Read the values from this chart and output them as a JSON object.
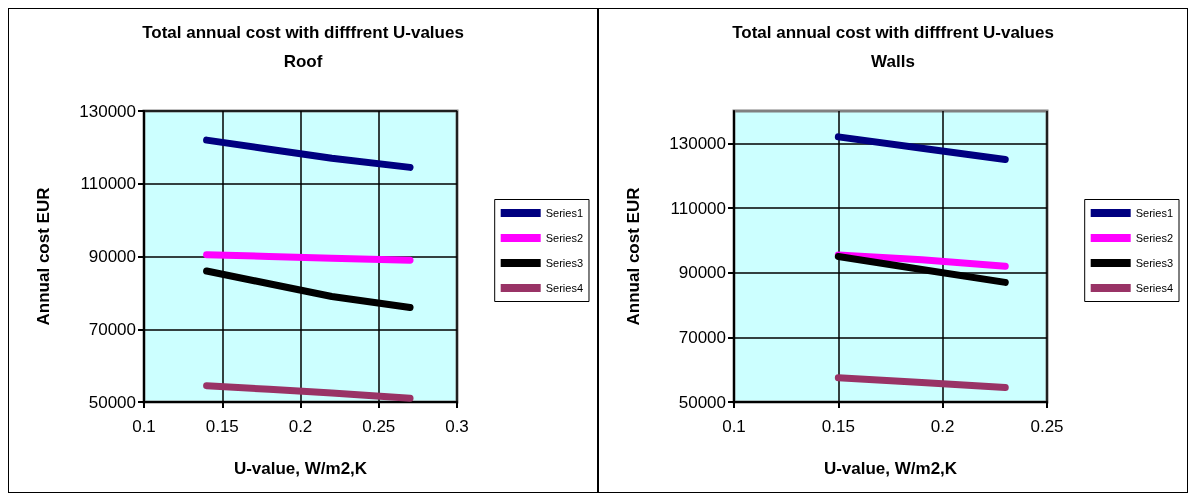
{
  "chart_data": [
    {
      "type": "line",
      "title": "Total annual cost with difffrent U-values",
      "subtitle": "Roof",
      "xlabel": "U-value, W/m2,K",
      "ylabel": "Annual cost EUR",
      "xlim": [
        0.1,
        0.3
      ],
      "xticks": [
        0.1,
        0.15,
        0.2,
        0.25,
        0.3
      ],
      "ylim": [
        50000,
        130000
      ],
      "yticks": [
        50000,
        70000,
        90000,
        110000,
        130000
      ],
      "grid": true,
      "legend": "right",
      "marker": "none",
      "line_style": "solid",
      "series": [
        {
          "name": "Series1",
          "color": "#000080",
          "x": [
            0.14,
            0.18,
            0.22,
            0.27
          ],
          "values": [
            122000,
            119500,
            117000,
            114500
          ]
        },
        {
          "name": "Series2",
          "color": "#ff00ff",
          "x": [
            0.14,
            0.18,
            0.22,
            0.27
          ],
          "values": [
            90500,
            90000,
            89500,
            89000
          ]
        },
        {
          "name": "Series3",
          "color": "#000000",
          "x": [
            0.14,
            0.18,
            0.22,
            0.27
          ],
          "values": [
            86000,
            82500,
            79000,
            76000
          ]
        },
        {
          "name": "Series4",
          "color": "#993366",
          "x": [
            0.14,
            0.18,
            0.22,
            0.27
          ],
          "values": [
            54500,
            53500,
            52500,
            51000
          ]
        }
      ]
    },
    {
      "type": "line",
      "title": "Total annual cost with difffrent U-values",
      "subtitle": "Walls",
      "xlabel": "U-value, W/m2,K",
      "ylabel": "Annual cost EUR",
      "xlim": [
        0.1,
        0.25
      ],
      "xticks": [
        0.1,
        0.15,
        0.2,
        0.25
      ],
      "ylim": [
        50000,
        140000
      ],
      "yticks": [
        50000,
        70000,
        90000,
        110000,
        130000
      ],
      "grid": true,
      "legend": "right",
      "marker": "none",
      "line_style": "solid",
      "series": [
        {
          "name": "Series1",
          "color": "#000080",
          "x": [
            0.15,
            0.19,
            0.23
          ],
          "values": [
            132000,
            128500,
            125000
          ]
        },
        {
          "name": "Series2",
          "color": "#ff00ff",
          "x": [
            0.15,
            0.19,
            0.23
          ],
          "values": [
            95500,
            94000,
            92000
          ]
        },
        {
          "name": "Series3",
          "color": "#000000",
          "x": [
            0.15,
            0.19,
            0.23
          ],
          "values": [
            95000,
            91000,
            87000
          ]
        },
        {
          "name": "Series4",
          "color": "#993366",
          "x": [
            0.15,
            0.19,
            0.23
          ],
          "values": [
            57500,
            56000,
            54500
          ]
        }
      ]
    }
  ]
}
